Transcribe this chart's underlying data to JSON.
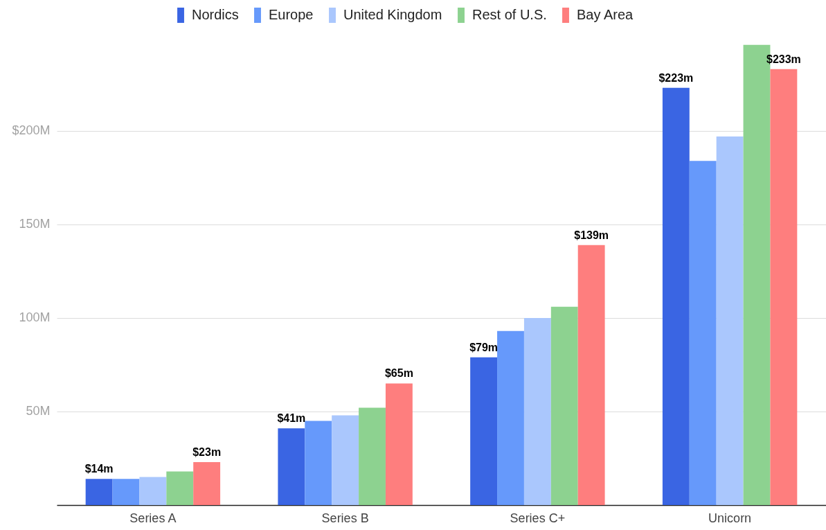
{
  "chart_data": {
    "type": "bar",
    "categories": [
      "Series A",
      "Series B",
      "Series C+",
      "Unicorn"
    ],
    "series": [
      {
        "name": "Nordics",
        "color": "#3a65e3",
        "values": [
          14,
          41,
          79,
          223
        ],
        "value_labels": [
          "$14m",
          "$41m",
          "$79m",
          "$223m"
        ]
      },
      {
        "name": "Europe",
        "color": "#6699fb",
        "values": [
          14,
          45,
          93,
          184
        ]
      },
      {
        "name": "United Kingdom",
        "color": "#aac7fd",
        "values": [
          15,
          48,
          100,
          197
        ]
      },
      {
        "name": "Rest of U.S.",
        "color": "#8dd290",
        "values": [
          18,
          52,
          106,
          246
        ]
      },
      {
        "name": "Bay Area",
        "color": "#fe7e7e",
        "values": [
          23,
          65,
          139,
          233
        ],
        "value_labels": [
          "$23m",
          "$65m",
          "$139m",
          "$233m"
        ]
      }
    ],
    "ylim": [
      0,
      247
    ],
    "yticks": [
      {
        "value": 0,
        "label": null
      },
      {
        "value": 50,
        "label": "50M"
      },
      {
        "value": 100,
        "label": "100M"
      },
      {
        "value": 150,
        "label": "150M"
      },
      {
        "value": 200,
        "label": "$200M"
      }
    ],
    "grid": "y",
    "legend": "top"
  }
}
